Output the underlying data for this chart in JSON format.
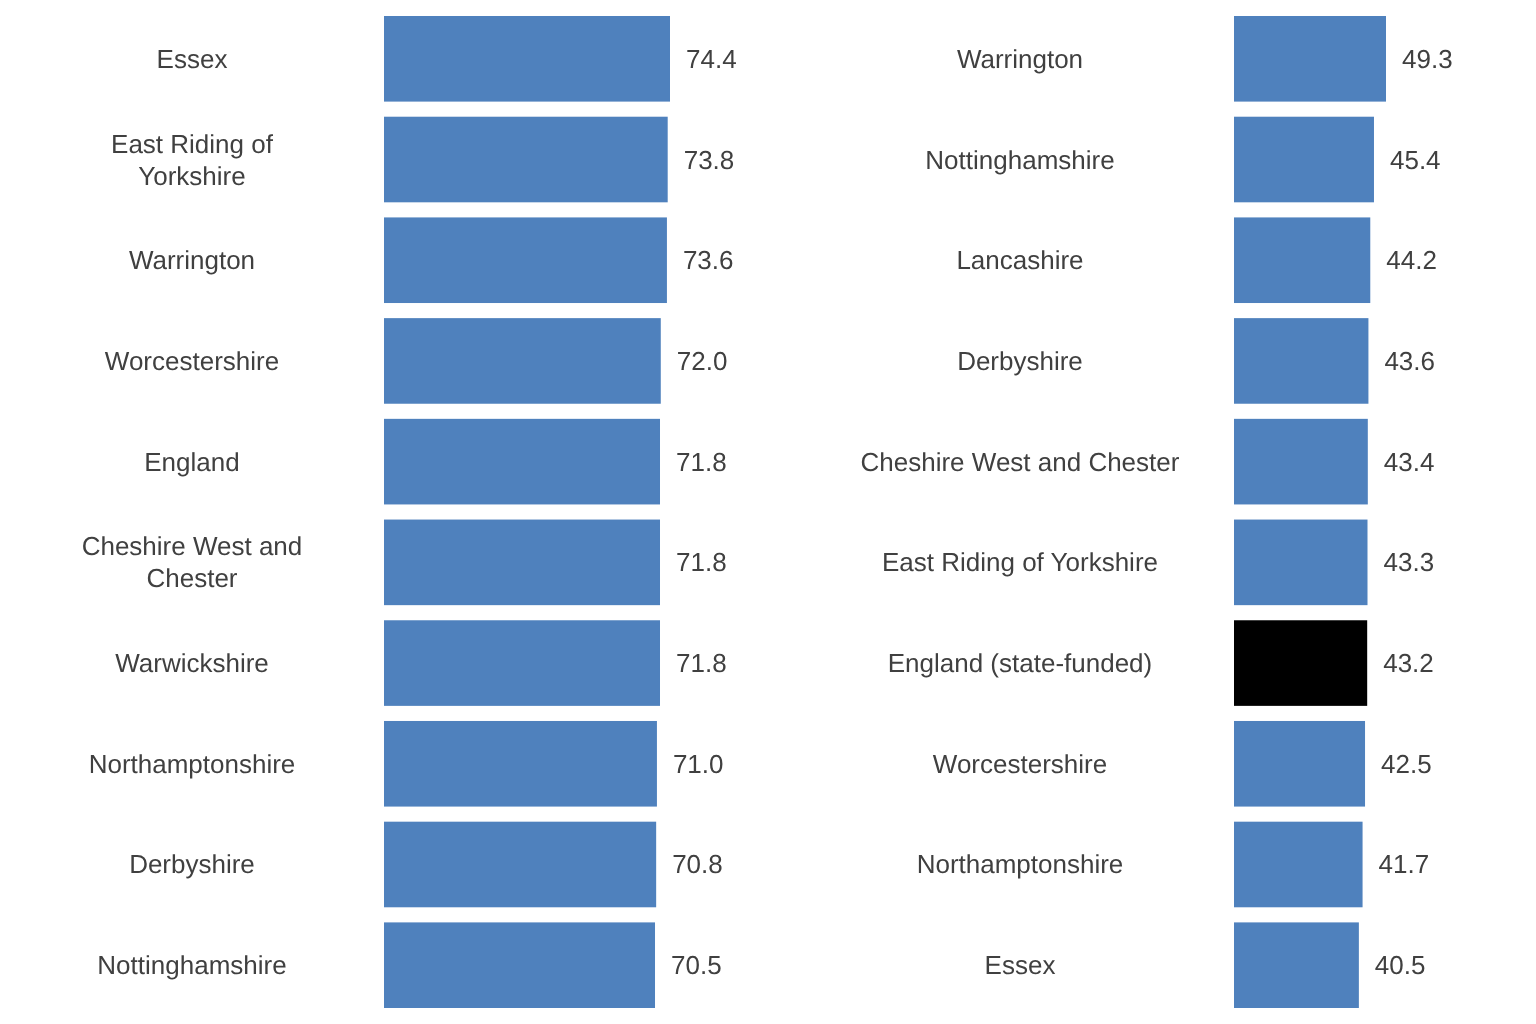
{
  "chart_data": [
    {
      "type": "bar",
      "orientation": "horizontal",
      "categories": [
        "Essex",
        "East Riding of Yorkshire",
        "Warrington",
        "Worcestershire",
        "England",
        "Cheshire West and Chester",
        "Warwickshire",
        "Northamptonshire",
        "Derbyshire",
        "Nottinghamshire"
      ],
      "values": [
        74.4,
        73.8,
        73.6,
        72.0,
        71.8,
        71.8,
        71.8,
        71.0,
        70.8,
        70.5
      ],
      "colors": [
        "#4f81bd",
        "#4f81bd",
        "#4f81bd",
        "#4f81bd",
        "#4f81bd",
        "#4f81bd",
        "#4f81bd",
        "#4f81bd",
        "#4f81bd",
        "#4f81bd"
      ],
      "data_labels": true,
      "value_labels": [
        "74.4",
        "73.8",
        "73.6",
        "72.0",
        "71.8",
        "71.8",
        "71.8",
        "71.0",
        "70.8",
        "70.5"
      ]
    },
    {
      "type": "bar",
      "orientation": "horizontal",
      "categories": [
        "Warrington",
        "Nottinghamshire",
        "Lancashire",
        "Derbyshire",
        "Cheshire West and Chester",
        "East Riding of Yorkshire",
        "England (state-funded)",
        "Worcestershire",
        "Northamptonshire",
        "Essex"
      ],
      "values": [
        49.3,
        45.4,
        44.2,
        43.6,
        43.4,
        43.3,
        43.2,
        42.5,
        41.7,
        40.5
      ],
      "colors": [
        "#4f81bd",
        "#4f81bd",
        "#4f81bd",
        "#4f81bd",
        "#4f81bd",
        "#4f81bd",
        "#000000",
        "#4f81bd",
        "#4f81bd",
        "#4f81bd"
      ],
      "data_labels": true,
      "value_labels": [
        "49.3",
        "45.4",
        "44.2",
        "43.6",
        "43.4",
        "43.3",
        "43.2",
        "42.5",
        "41.7",
        "40.5"
      ]
    }
  ]
}
